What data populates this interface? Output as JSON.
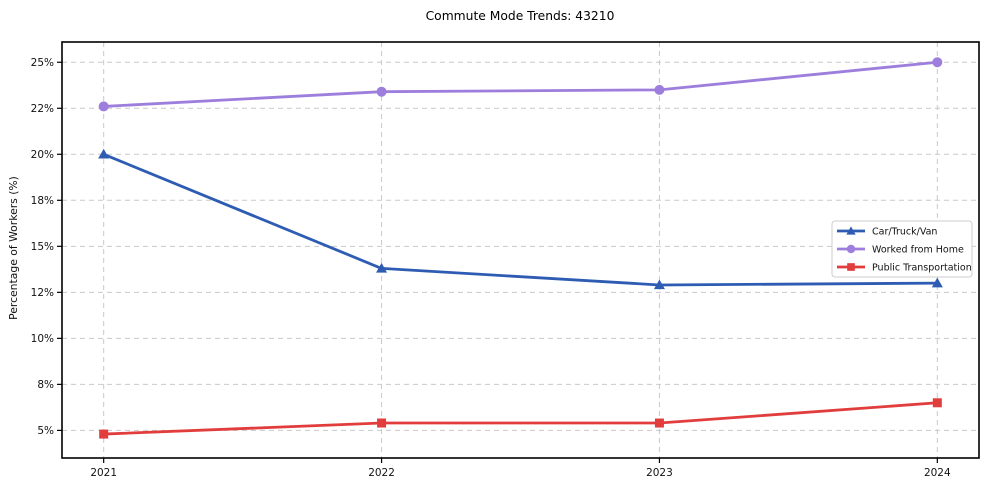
{
  "chart_data": {
    "type": "line",
    "title": "Commute Mode Trends: 43210",
    "xlabel": "",
    "ylabel": "Percentage of Workers (%)",
    "x": [
      2021,
      2022,
      2023,
      2024
    ],
    "x_tick_labels": [
      "2021",
      "2022",
      "2023",
      "2024"
    ],
    "series": [
      {
        "name": "Car/Truck/Van",
        "color": "#2f5cb3",
        "marker": "triangle",
        "values": [
          20.0,
          13.8,
          12.9,
          13.0
        ]
      },
      {
        "name": "Worked from Home",
        "color": "#9d7edd",
        "marker": "circle",
        "values": [
          22.6,
          23.4,
          23.5,
          25.0
        ]
      },
      {
        "name": "Public Transportation",
        "color": "#e23d3d",
        "marker": "square",
        "values": [
          4.8,
          5.4,
          5.4,
          6.5
        ]
      }
    ],
    "y_ticks": [
      5,
      7.5,
      10,
      12.5,
      15,
      17.5,
      20,
      22.5,
      25
    ],
    "y_tick_labels": [
      "5%",
      "8%",
      "10%",
      "12%",
      "15%",
      "18%",
      "20%",
      "22%",
      "25%"
    ],
    "xlim": [
      2020.85,
      2024.15
    ],
    "ylim": [
      3.5,
      26.1
    ],
    "grid": true,
    "legend_position": "center-right",
    "colors": {
      "grid": "#c9c9c9",
      "frame": "#000000",
      "legend_border": "#cccccc",
      "background": "#ffffff"
    }
  }
}
